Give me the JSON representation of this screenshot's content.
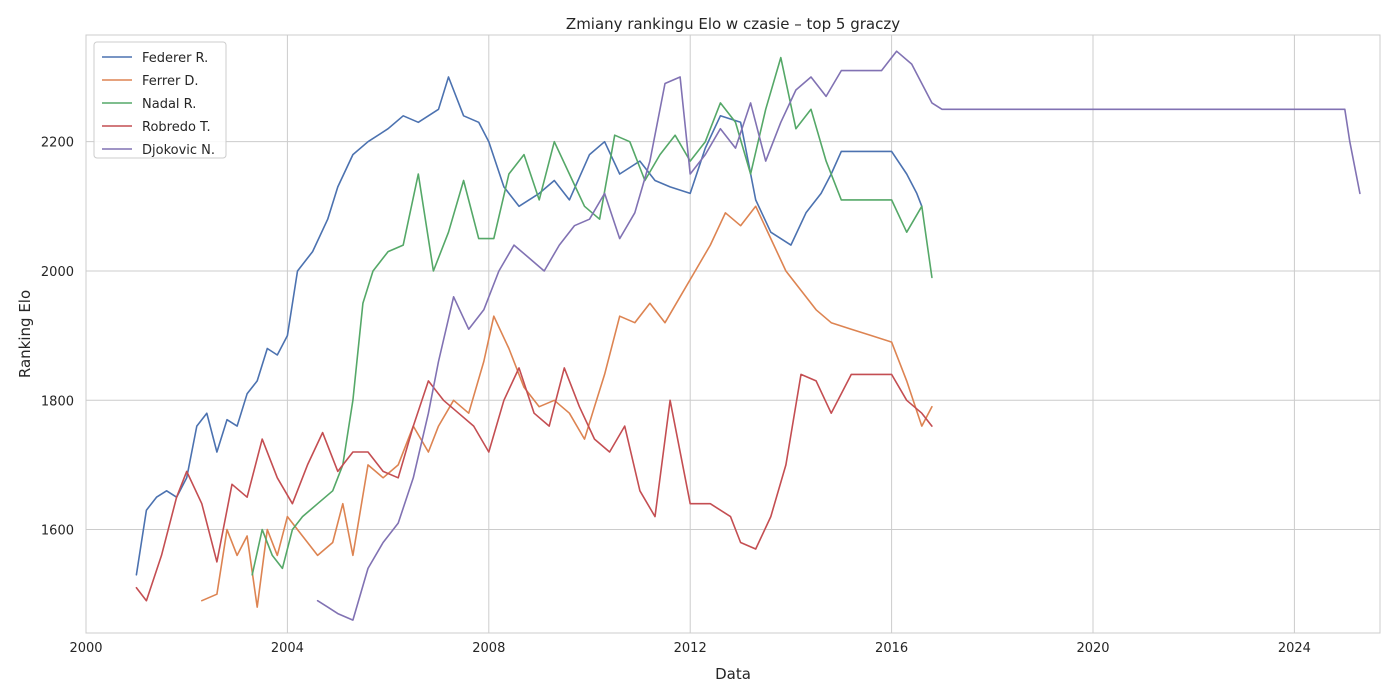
{
  "chart_data": {
    "type": "line",
    "title": "Zmiany rankingu Elo w czasie – top 5 graczy",
    "xlabel": "Data",
    "ylabel": "Ranking Elo",
    "xlim": [
      2000.0,
      2025.7
    ],
    "ylim": [
      1440,
      2365
    ],
    "x_ticks": [
      2000,
      2004,
      2008,
      2012,
      2016,
      2020,
      2024
    ],
    "y_ticks": [
      1600,
      1800,
      2000,
      2200
    ],
    "grid": true,
    "legend_position": "top-left",
    "series": [
      {
        "name": "Federer R.",
        "color": "#4c72b0",
        "x": [
          2001.0,
          2001.2,
          2001.4,
          2001.6,
          2001.8,
          2002.0,
          2002.2,
          2002.4,
          2002.6,
          2002.8,
          2003.0,
          2003.2,
          2003.4,
          2003.6,
          2003.8,
          2004.0,
          2004.2,
          2004.5,
          2004.8,
          2005.0,
          2005.3,
          2005.6,
          2006.0,
          2006.3,
          2006.6,
          2007.0,
          2007.2,
          2007.5,
          2007.8,
          2008.0,
          2008.3,
          2008.6,
          2009.0,
          2009.3,
          2009.6,
          2010.0,
          2010.3,
          2010.6,
          2011.0,
          2011.3,
          2011.6,
          2012.0,
          2012.3,
          2012.6,
          2013.0,
          2013.3,
          2013.6,
          2014.0,
          2014.3,
          2014.6,
          2014.8,
          2015.0,
          2015.5,
          2016.0,
          2016.3,
          2016.5,
          2016.6
        ],
        "y": [
          1530,
          1630,
          1650,
          1660,
          1650,
          1680,
          1760,
          1780,
          1720,
          1770,
          1760,
          1810,
          1830,
          1880,
          1870,
          1900,
          2000,
          2030,
          2080,
          2130,
          2180,
          2200,
          2220,
          2240,
          2230,
          2250,
          2300,
          2240,
          2230,
          2200,
          2130,
          2100,
          2120,
          2140,
          2110,
          2180,
          2200,
          2150,
          2170,
          2140,
          2130,
          2120,
          2190,
          2240,
          2230,
          2110,
          2060,
          2040,
          2090,
          2120,
          2150,
          2185,
          2185,
          2185,
          2150,
          2120,
          2100
        ]
      },
      {
        "name": "Ferrer D.",
        "color": "#dd8452",
        "x": [
          2002.3,
          2002.6,
          2002.8,
          2003.0,
          2003.2,
          2003.4,
          2003.6,
          2003.8,
          2004.0,
          2004.3,
          2004.6,
          2004.9,
          2005.1,
          2005.3,
          2005.6,
          2005.9,
          2006.2,
          2006.5,
          2006.8,
          2007.0,
          2007.3,
          2007.6,
          2007.9,
          2008.1,
          2008.4,
          2008.7,
          2009.0,
          2009.3,
          2009.6,
          2009.9,
          2010.1,
          2010.3,
          2010.6,
          2010.9,
          2011.2,
          2011.5,
          2011.8,
          2012.1,
          2012.4,
          2012.7,
          2013.0,
          2013.3,
          2013.6,
          2013.9,
          2014.2,
          2014.5,
          2014.8,
          2015.2,
          2015.6,
          2016.0,
          2016.3,
          2016.6,
          2016.8
        ],
        "y": [
          1490,
          1500,
          1600,
          1560,
          1590,
          1480,
          1600,
          1560,
          1620,
          1590,
          1560,
          1580,
          1640,
          1560,
          1700,
          1680,
          1700,
          1760,
          1720,
          1760,
          1800,
          1780,
          1860,
          1930,
          1880,
          1820,
          1790,
          1800,
          1780,
          1740,
          1790,
          1840,
          1930,
          1920,
          1950,
          1920,
          1960,
          2000,
          2040,
          2090,
          2070,
          2100,
          2050,
          2000,
          1970,
          1940,
          1920,
          1910,
          1900,
          1890,
          1830,
          1760,
          1790
        ]
      },
      {
        "name": "Nadal R.",
        "color": "#55a868",
        "x": [
          2003.3,
          2003.5,
          2003.7,
          2003.9,
          2004.1,
          2004.3,
          2004.6,
          2004.9,
          2005.1,
          2005.3,
          2005.5,
          2005.7,
          2006.0,
          2006.3,
          2006.6,
          2006.9,
          2007.2,
          2007.5,
          2007.8,
          2008.1,
          2008.4,
          2008.7,
          2009.0,
          2009.3,
          2009.6,
          2009.9,
          2010.2,
          2010.5,
          2010.8,
          2011.1,
          2011.4,
          2011.7,
          2012.0,
          2012.3,
          2012.6,
          2012.9,
          2013.2,
          2013.5,
          2013.8,
          2014.1,
          2014.4,
          2014.7,
          2015.0,
          2015.5,
          2016.0,
          2016.3,
          2016.6,
          2016.8
        ],
        "y": [
          1530,
          1600,
          1560,
          1540,
          1600,
          1620,
          1640,
          1660,
          1700,
          1800,
          1950,
          2000,
          2030,
          2040,
          2150,
          2000,
          2060,
          2140,
          2050,
          2050,
          2150,
          2180,
          2110,
          2200,
          2150,
          2100,
          2080,
          2210,
          2200,
          2140,
          2180,
          2210,
          2170,
          2200,
          2260,
          2230,
          2150,
          2250,
          2330,
          2220,
          2250,
          2170,
          2110,
          2110,
          2110,
          2060,
          2100,
          1990
        ]
      },
      {
        "name": "Robredo T.",
        "color": "#c44e52",
        "x": [
          2001.0,
          2001.2,
          2001.5,
          2001.8,
          2002.0,
          2002.3,
          2002.6,
          2002.9,
          2003.2,
          2003.5,
          2003.8,
          2004.1,
          2004.4,
          2004.7,
          2005.0,
          2005.3,
          2005.6,
          2005.9,
          2006.2,
          2006.5,
          2006.8,
          2007.1,
          2007.4,
          2007.7,
          2008.0,
          2008.3,
          2008.6,
          2008.9,
          2009.2,
          2009.5,
          2009.8,
          2010.1,
          2010.4,
          2010.7,
          2011.0,
          2011.3,
          2011.6,
          2012.0,
          2012.4,
          2012.8,
          2013.0,
          2013.3,
          2013.6,
          2013.9,
          2014.2,
          2014.5,
          2014.8,
          2015.2,
          2015.6,
          2016.0,
          2016.3,
          2016.6,
          2016.8
        ],
        "y": [
          1510,
          1490,
          1560,
          1650,
          1690,
          1640,
          1550,
          1670,
          1650,
          1740,
          1680,
          1640,
          1700,
          1750,
          1690,
          1720,
          1720,
          1690,
          1680,
          1760,
          1830,
          1800,
          1780,
          1760,
          1720,
          1800,
          1850,
          1780,
          1760,
          1850,
          1790,
          1740,
          1720,
          1760,
          1660,
          1620,
          1800,
          1640,
          1640,
          1620,
          1580,
          1570,
          1620,
          1700,
          1840,
          1830,
          1780,
          1840,
          1840,
          1840,
          1800,
          1780,
          1760
        ]
      },
      {
        "name": "Djokovic N.",
        "color": "#8172b3",
        "x": [
          2004.6,
          2004.8,
          2005.0,
          2005.3,
          2005.6,
          2005.9,
          2006.2,
          2006.5,
          2006.8,
          2007.0,
          2007.3,
          2007.6,
          2007.9,
          2008.2,
          2008.5,
          2008.8,
          2009.1,
          2009.4,
          2009.7,
          2010.0,
          2010.3,
          2010.6,
          2010.9,
          2011.2,
          2011.5,
          2011.8,
          2012.0,
          2012.3,
          2012.6,
          2012.9,
          2013.2,
          2013.5,
          2013.8,
          2014.1,
          2014.4,
          2014.7,
          2015.0,
          2015.4,
          2015.8,
          2016.1,
          2016.4,
          2016.6,
          2016.8,
          2017.0,
          2020.0,
          2024.0,
          2025.0,
          2025.1,
          2025.3
        ],
        "y": [
          1490,
          1480,
          1470,
          1460,
          1540,
          1580,
          1610,
          1680,
          1780,
          1860,
          1960,
          1910,
          1940,
          2000,
          2040,
          2020,
          2000,
          2040,
          2070,
          2080,
          2120,
          2050,
          2090,
          2170,
          2290,
          2300,
          2150,
          2180,
          2220,
          2190,
          2260,
          2170,
          2230,
          2280,
          2300,
          2270,
          2310,
          2310,
          2310,
          2340,
          2320,
          2290,
          2260,
          2250,
          2250,
          2250,
          2250,
          2200,
          2120
        ]
      }
    ]
  }
}
